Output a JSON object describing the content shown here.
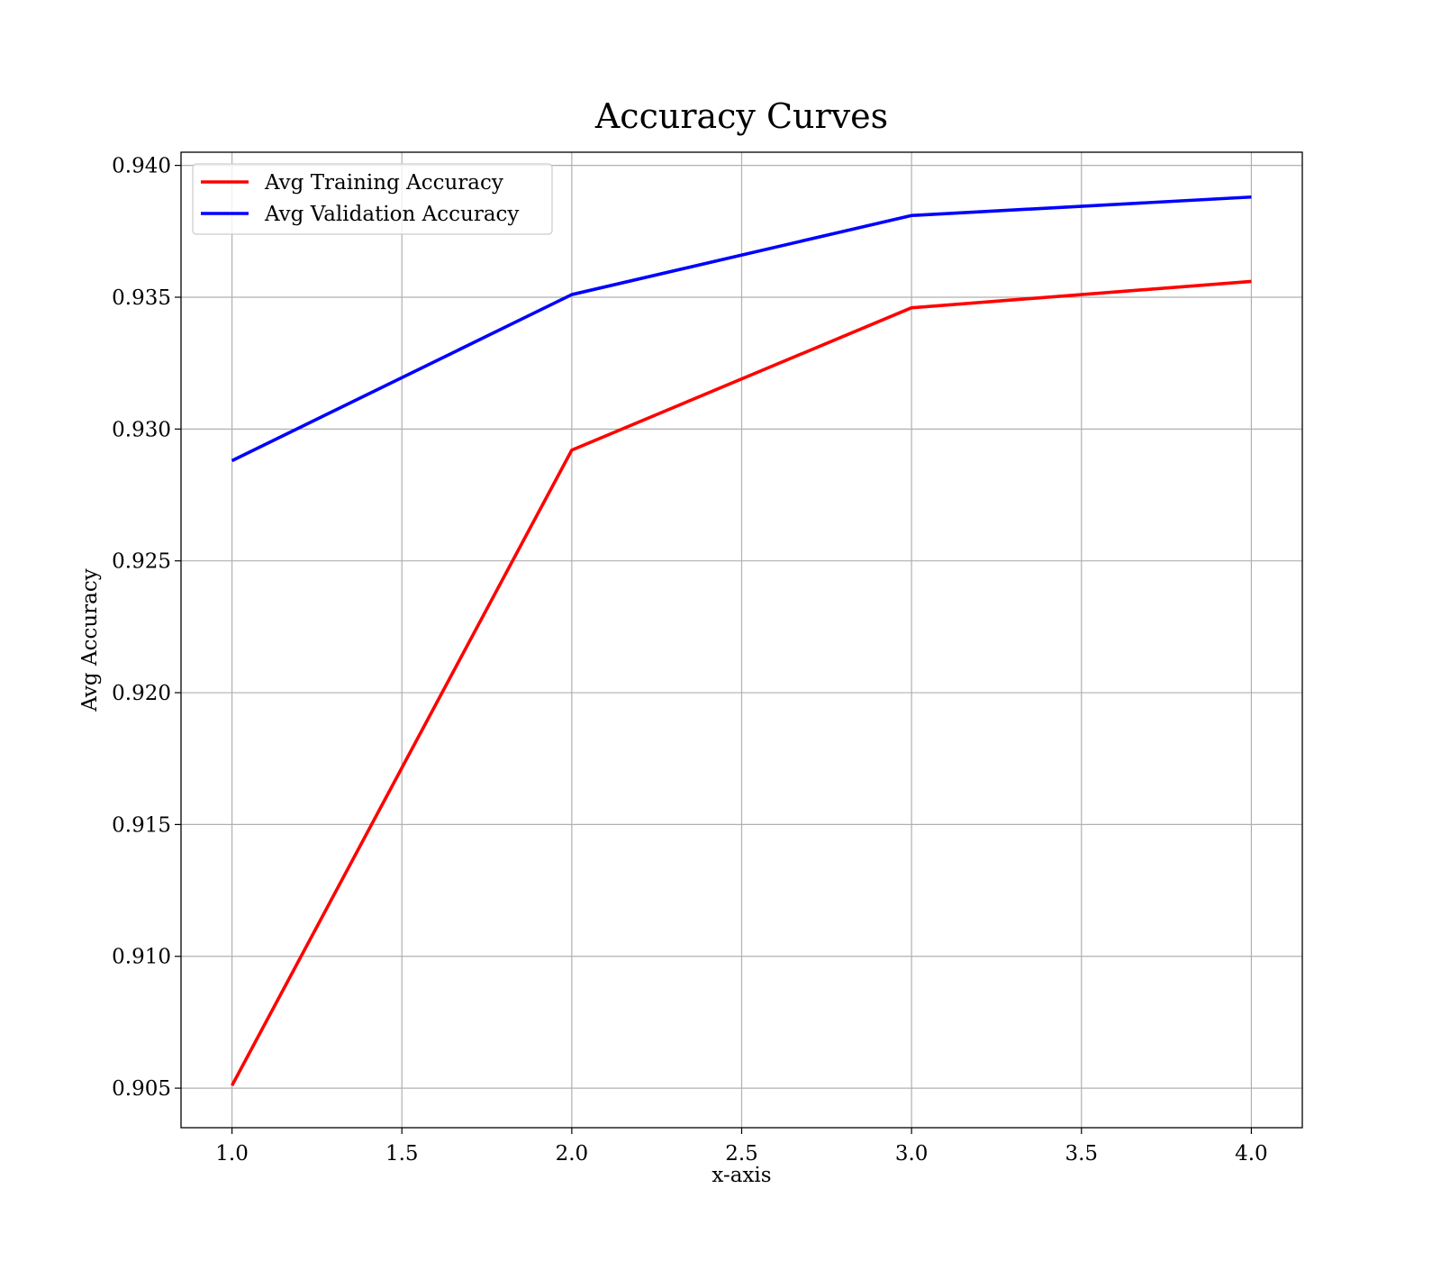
{
  "chart_data": {
    "type": "line",
    "title": "Accuracy Curves",
    "xlabel": "x-axis",
    "ylabel": "Avg Accuracy",
    "x": [
      1.0,
      2.0,
      3.0,
      4.0
    ],
    "xlim": [
      0.85,
      4.15
    ],
    "ylim": [
      0.9035,
      0.9405
    ],
    "xticks": [
      1.0,
      1.5,
      2.0,
      2.5,
      3.0,
      3.5,
      4.0
    ],
    "xtick_labels": [
      "1.0",
      "1.5",
      "2.0",
      "2.5",
      "3.0",
      "3.5",
      "4.0"
    ],
    "yticks": [
      0.905,
      0.91,
      0.915,
      0.92,
      0.925,
      0.93,
      0.935,
      0.94
    ],
    "ytick_labels": [
      "0.905",
      "0.910",
      "0.915",
      "0.920",
      "0.925",
      "0.930",
      "0.935",
      "0.940"
    ],
    "grid": true,
    "legend_position": "top-left",
    "series": [
      {
        "name": "Avg Training Accuracy",
        "color": "#ff0000",
        "values": [
          0.9051,
          0.9292,
          0.9346,
          0.9356
        ]
      },
      {
        "name": "Avg Validation Accuracy",
        "color": "#0000ff",
        "values": [
          0.9288,
          0.9351,
          0.9381,
          0.9388
        ]
      }
    ]
  }
}
